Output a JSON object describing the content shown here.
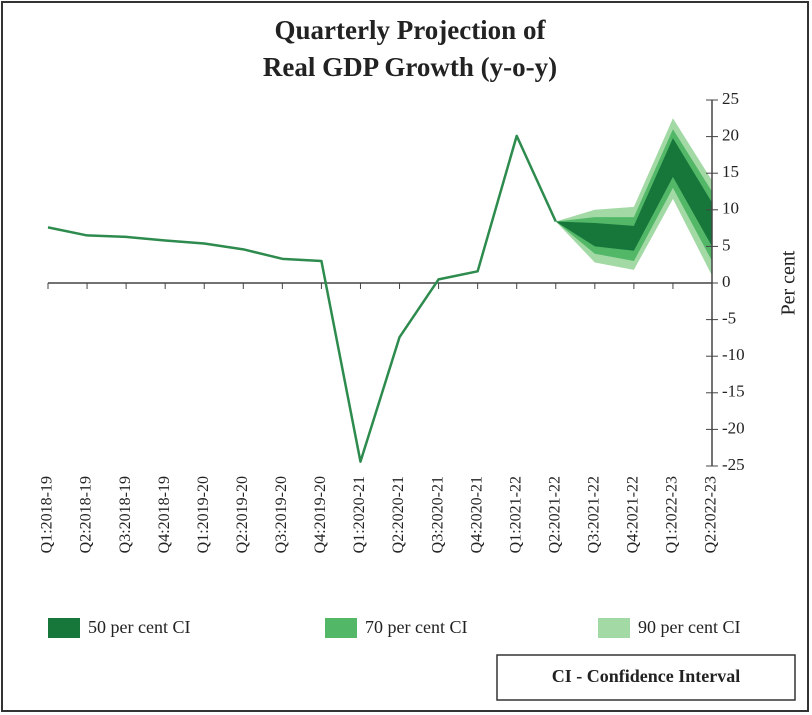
{
  "chart_data": {
    "type": "fan",
    "title": [
      "Quarterly Projection of",
      "Real GDP Growth (y-o-y)"
    ],
    "y_label": "Per cent",
    "note": "CI - Confidence Interval",
    "categories": [
      "Q1:2018-19",
      "Q2:2018-19",
      "Q3:2018-19",
      "Q4:2018-19",
      "Q1:2019-20",
      "Q2:2019-20",
      "Q3:2019-20",
      "Q4:2019-20",
      "Q1:2020-21",
      "Q2:2020-21",
      "Q3:2020-21",
      "Q4:2020-21",
      "Q1:2021-22",
      "Q2:2021-22",
      "Q3:2021-22",
      "Q4:2021-22",
      "Q1:2022-23",
      "Q2:2022-23"
    ],
    "line": {
      "color": "#2e8b4e",
      "values": [
        7.6,
        6.5,
        6.3,
        5.8,
        5.4,
        4.6,
        3.3,
        3.0,
        -24.4,
        -7.4,
        0.5,
        1.6,
        20.1,
        8.4,
        null,
        null,
        null,
        null
      ]
    },
    "bands": [
      {
        "name": "90 per cent CI",
        "color": "#a3d9a5",
        "lower": [
          null,
          null,
          null,
          null,
          null,
          null,
          null,
          null,
          null,
          null,
          null,
          null,
          null,
          8.4,
          2.8,
          1.8,
          11.5,
          1.0
        ],
        "upper": [
          null,
          null,
          null,
          null,
          null,
          null,
          null,
          null,
          null,
          null,
          null,
          null,
          null,
          8.4,
          10.0,
          10.4,
          22.5,
          14.0
        ]
      },
      {
        "name": "70 per cent CI",
        "color": "#52b868",
        "lower": [
          null,
          null,
          null,
          null,
          null,
          null,
          null,
          null,
          null,
          null,
          null,
          null,
          null,
          8.4,
          4.0,
          3.0,
          13.0,
          3.0
        ],
        "upper": [
          null,
          null,
          null,
          null,
          null,
          null,
          null,
          null,
          null,
          null,
          null,
          null,
          null,
          8.4,
          9.0,
          9.0,
          21.0,
          12.5
        ]
      },
      {
        "name": "50 per cent CI",
        "color": "#17773b",
        "lower": [
          null,
          null,
          null,
          null,
          null,
          null,
          null,
          null,
          null,
          null,
          null,
          null,
          null,
          8.4,
          5.0,
          4.4,
          14.5,
          5.0
        ],
        "upper": [
          null,
          null,
          null,
          null,
          null,
          null,
          null,
          null,
          null,
          null,
          null,
          null,
          null,
          8.4,
          8.2,
          7.8,
          19.8,
          11.0
        ]
      }
    ],
    "legend_order": [
      2,
      1,
      0
    ],
    "ylim": [
      -25,
      25
    ],
    "yticks": [
      25,
      20,
      15,
      10,
      5,
      0,
      -5,
      -10,
      -15,
      -20,
      -25
    ]
  }
}
